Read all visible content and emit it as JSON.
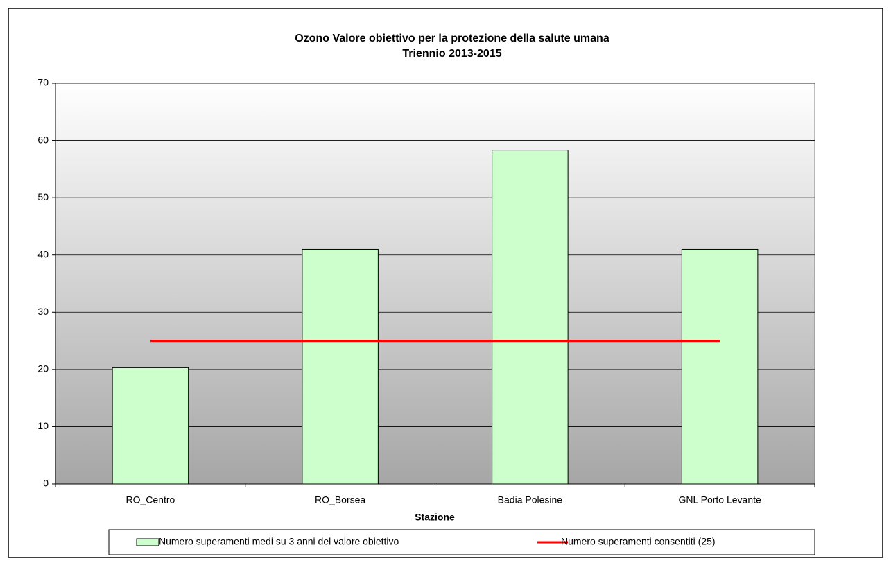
{
  "chart_data": {
    "type": "bar",
    "title": "Ozono Valore obiettivo per la protezione della salute umana",
    "subtitle": "Triennio 2013-2015",
    "x_label": "Stazione",
    "categories": [
      "RO_Centro",
      "RO_Borsea",
      "Badia Polesine",
      "GNL Porto Levante"
    ],
    "series": [
      {
        "name": "Numero superamenti medi su 3 anni del valore obiettivo",
        "type": "bar",
        "color": "#ccffcc",
        "values": [
          20.3,
          41.0,
          58.3,
          41.0
        ]
      },
      {
        "name": "Numero superamenti consentiti (25)",
        "type": "line",
        "color": "#ff0000",
        "values": [
          25,
          25,
          25,
          25
        ]
      }
    ],
    "ylim": [
      0,
      70
    ],
    "yticks": [
      0,
      10,
      20,
      30,
      40,
      50,
      60,
      70
    ],
    "grid": true,
    "legend": "bottom"
  }
}
